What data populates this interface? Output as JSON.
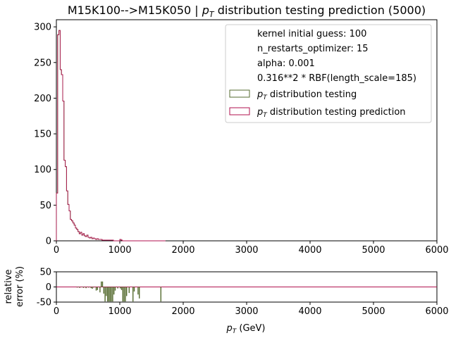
{
  "chart_data": [
    {
      "type": "line",
      "title_main": "M15K100-->M15K050 | ",
      "title_math": "p",
      "title_sub": "T",
      "title_rest": " distribution testing prediction (5000)",
      "xlim": [
        0,
        6000
      ],
      "ylim": [
        0,
        310
      ],
      "xticks": [
        0,
        1000,
        2000,
        3000,
        4000,
        5000,
        6000
      ],
      "yticks": [
        0,
        50,
        100,
        150,
        200,
        250,
        300
      ],
      "legend_placement": "top-right",
      "legend_text": [
        "kernel initial guess: 100",
        "n_restarts_optimizer: 15",
        "alpha: 0.001",
        "0.316**2 * RBF(length_scale=185)"
      ],
      "series": [
        {
          "name": "distribution testing",
          "name_math": "p",
          "name_sub": "T",
          "color": "#556b2f",
          "bin_width": 20,
          "x": [
            0,
            20,
            40,
            60,
            80,
            100,
            120,
            140,
            160,
            180,
            200,
            220,
            240,
            260,
            280,
            300,
            320,
            340,
            360,
            380,
            400,
            420,
            440,
            460,
            480,
            500,
            520,
            540,
            560,
            580,
            600,
            620,
            640,
            660,
            680,
            700,
            720,
            740,
            760,
            780,
            800,
            820,
            840,
            860,
            880,
            900,
            920,
            940,
            960,
            980,
            1000,
            1020,
            1040,
            1060,
            1080,
            1100,
            1120,
            1140,
            1160,
            1180,
            1200,
            1220,
            1240,
            1260,
            1280,
            1300,
            1320,
            1340,
            1360,
            1380,
            1400,
            1420,
            1440,
            1460,
            1480,
            1500,
            1520,
            1540,
            1560,
            1580,
            1600,
            1620,
            1640,
            1660,
            1680,
            1700
          ],
          "values": [
            67,
            289,
            295,
            240,
            233,
            196,
            113,
            104,
            70,
            51,
            42,
            30,
            28,
            25,
            22,
            18,
            16,
            13,
            10,
            12,
            8,
            10,
            7,
            6,
            8,
            5,
            4,
            5,
            3,
            4,
            3,
            2,
            3,
            2,
            2,
            2,
            1,
            1,
            1,
            1,
            1,
            1,
            1,
            1,
            1,
            0,
            0,
            0,
            0,
            0,
            2,
            1,
            0,
            0,
            0,
            0,
            0,
            0,
            0,
            0,
            0,
            0,
            0,
            0,
            0,
            0,
            0,
            0,
            0,
            0,
            0,
            0,
            0,
            0,
            0,
            0,
            0,
            0,
            0,
            0,
            0,
            0,
            0,
            0,
            0,
            0
          ]
        },
        {
          "name": "distribution testing prediction",
          "name_math": "p",
          "name_sub": "T",
          "color": "#b0124f",
          "bin_width": 20,
          "x": [
            0,
            20,
            40,
            60,
            80,
            100,
            120,
            140,
            160,
            180,
            200,
            220,
            240,
            260,
            280,
            300,
            320,
            340,
            360,
            380,
            400,
            420,
            440,
            460,
            480,
            500,
            520,
            540,
            560,
            580,
            600,
            620,
            640,
            660,
            680,
            700,
            720,
            740,
            760,
            780,
            800,
            820,
            840,
            860,
            880,
            900,
            920,
            940,
            960,
            980,
            1000,
            1020,
            1040,
            1060,
            1080,
            1100,
            1120,
            1140,
            1160,
            1180,
            1200,
            1220,
            1240,
            1260,
            1280,
            1300,
            1320,
            1340,
            1360,
            1380,
            1400,
            1420,
            1440,
            1460,
            1480,
            1500,
            1520,
            1540,
            1560,
            1580,
            1600,
            1620,
            1640,
            1660,
            1680,
            1700
          ],
          "values": [
            67,
            289,
            295,
            240,
            233,
            196,
            113,
            104,
            70,
            51,
            42,
            30,
            28,
            25,
            22,
            18,
            16,
            13,
            10,
            12,
            8,
            10,
            7,
            6,
            8,
            5,
            4,
            5,
            3,
            4,
            3,
            2,
            3,
            2,
            2,
            2,
            1,
            1,
            1,
            1,
            1,
            1,
            1,
            1,
            1,
            0,
            0,
            0,
            0,
            0,
            2,
            1,
            0,
            0,
            0,
            0,
            0,
            0,
            0,
            0,
            0,
            0,
            0,
            0,
            0,
            0,
            0,
            0,
            0,
            0,
            0,
            0,
            0,
            0,
            0,
            0,
            0,
            0,
            0,
            0,
            0,
            0,
            0,
            0,
            0,
            0
          ]
        }
      ]
    },
    {
      "type": "bar",
      "ylabel_line1": "relative",
      "ylabel_line2": "error (%)",
      "xlabel_math": "p",
      "xlabel_sub": "T",
      "xlabel_rest": " (GeV)",
      "xlim": [
        0,
        6000
      ],
      "ylim": [
        -50,
        50
      ],
      "xticks": [
        0,
        1000,
        2000,
        3000,
        4000,
        5000,
        6000
      ],
      "yticks": [
        50,
        0,
        -50
      ],
      "reference_line_color": "#b0124f",
      "bar_color": "#556b2f",
      "bin_width": 20,
      "x": [
        320,
        360,
        400,
        420,
        460,
        500,
        540,
        560,
        580,
        620,
        640,
        680,
        700,
        720,
        740,
        760,
        780,
        800,
        820,
        840,
        860,
        880,
        900,
        920,
        960,
        1000,
        1020,
        1040,
        1060,
        1080,
        1100,
        1140,
        1200,
        1220,
        1280,
        1300,
        1640
      ],
      "values": [
        -2,
        -3,
        -1,
        -3,
        -4,
        -2,
        -4,
        -6,
        -2,
        -12,
        -10,
        -18,
        18,
        18,
        -22,
        -48,
        -30,
        -48,
        -48,
        -48,
        -48,
        -48,
        -25,
        -12,
        -5,
        -5,
        -10,
        -48,
        -48,
        -48,
        -30,
        -20,
        -48,
        -15,
        -25,
        -38,
        -48
      ]
    }
  ]
}
